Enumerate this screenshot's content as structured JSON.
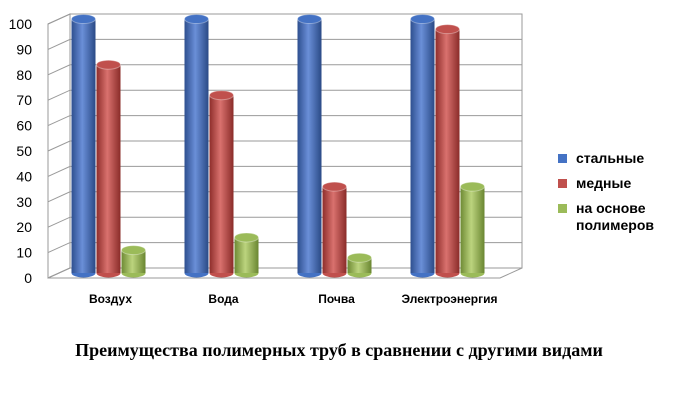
{
  "chart_data": {
    "type": "bar",
    "categories": [
      "Воздух",
      "Вода",
      "Почва",
      "Электроэнергия"
    ],
    "series": [
      {
        "name": "стальные",
        "values": [
          100,
          100,
          100,
          100
        ],
        "color": "#4472C4"
      },
      {
        "name": "медные",
        "values": [
          82,
          70,
          34,
          96
        ],
        "color": "#C0504D"
      },
      {
        "name": "на основе полимеров",
        "values": [
          9,
          14,
          6,
          34
        ],
        "color": "#9BBB59"
      }
    ],
    "ylim": [
      0,
      100
    ],
    "yticks": [
      0,
      10,
      20,
      30,
      40,
      50,
      60,
      70,
      80,
      90,
      100
    ],
    "grid": true,
    "style": "3d-cylinder",
    "legend_position": "right"
  },
  "caption": "Преимущества полимерных труб в сравнении с другими видами"
}
